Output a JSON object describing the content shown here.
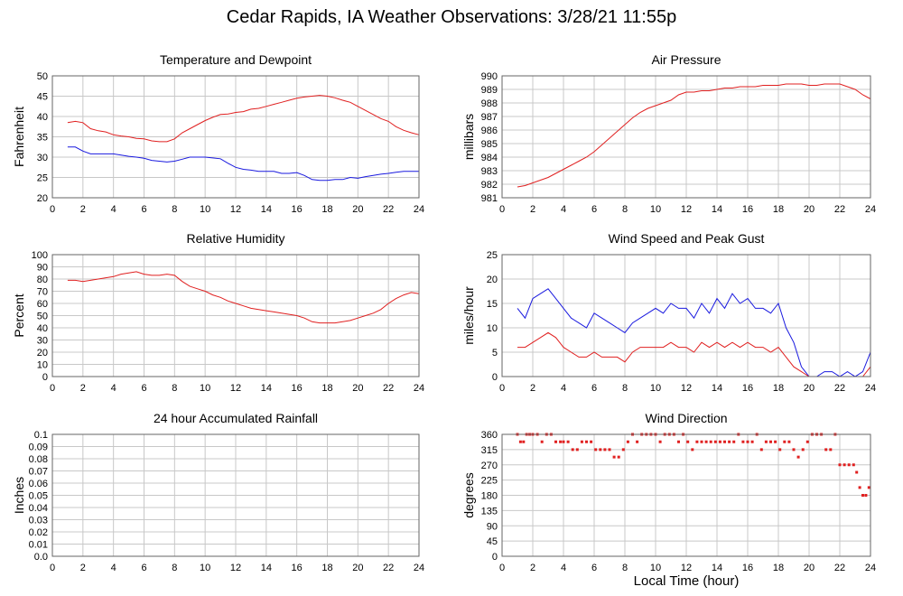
{
  "title": "Cedar Rapids, IA Weather Observations: 3/28/21 11:55p",
  "x_axis_label": "Local Time (hour)",
  "colors": {
    "red": "#e02020",
    "blue": "#1a1adf",
    "grid": "#c8c8c8",
    "frame": "#666666"
  },
  "chart_data": [
    {
      "id": "temp",
      "type": "line",
      "title": "Temperature and Dewpoint",
      "xlabel": "",
      "ylabel": "Fahrenheit",
      "xlim": [
        0,
        24
      ],
      "ylim": [
        20,
        50
      ],
      "xticks": [
        "2",
        "4",
        "6",
        "8",
        "10",
        "12",
        "14",
        "16",
        "18",
        "20",
        "22",
        "24"
      ],
      "yticks": [
        "20",
        "25",
        "30",
        "35",
        "40",
        "45",
        "50"
      ],
      "grid": true,
      "series": [
        {
          "color": "red",
          "x": [
            1,
            1.5,
            2,
            2.5,
            3,
            3.5,
            4,
            4.5,
            5,
            5.5,
            6,
            6.5,
            7,
            7.5,
            8,
            8.5,
            9,
            9.5,
            10,
            10.5,
            11,
            11.5,
            12,
            12.5,
            13,
            13.5,
            14,
            14.5,
            15,
            15.5,
            16,
            16.5,
            17,
            17.5,
            18,
            18.5,
            19,
            19.5,
            20,
            20.5,
            21,
            21.5,
            22,
            22.5,
            23,
            23.5,
            24
          ],
          "y": [
            38.5,
            38.8,
            38.5,
            37,
            36.5,
            36.2,
            35.5,
            35.2,
            35,
            34.6,
            34.5,
            34,
            33.8,
            33.8,
            34.5,
            36,
            37,
            38,
            39,
            39.8,
            40.5,
            40.6,
            41,
            41.2,
            41.8,
            42,
            42.5,
            43,
            43.5,
            44,
            44.5,
            44.8,
            45,
            45.2,
            45,
            44.6,
            44,
            43.5,
            42.5,
            41.5,
            40.5,
            39.5,
            38.8,
            37.5,
            36.6,
            36,
            35.5
          ]
        },
        {
          "color": "blue",
          "x": [
            1,
            1.5,
            2,
            2.5,
            3,
            3.5,
            4,
            4.5,
            5,
            5.5,
            6,
            6.5,
            7,
            7.5,
            8,
            8.5,
            9,
            9.5,
            10,
            10.5,
            11,
            11.5,
            12,
            12.5,
            13,
            13.5,
            14,
            14.5,
            15,
            15.5,
            16,
            16.5,
            17,
            17.5,
            18,
            18.5,
            19,
            19.5,
            20,
            20.5,
            21,
            21.5,
            22,
            22.5,
            23,
            23.5,
            24
          ],
          "y": [
            32.5,
            32.5,
            31.5,
            30.8,
            30.8,
            30.8,
            30.8,
            30.5,
            30.2,
            30,
            29.7,
            29.2,
            29,
            28.8,
            29,
            29.5,
            30,
            30,
            30,
            29.8,
            29.6,
            28.5,
            27.5,
            27,
            26.8,
            26.5,
            26.5,
            26.5,
            26,
            26,
            26.2,
            25.5,
            24.5,
            24.3,
            24.3,
            24.5,
            24.5,
            25,
            24.8,
            25.2,
            25.5,
            25.8,
            26,
            26.3,
            26.5,
            26.5,
            26.5
          ]
        }
      ]
    },
    {
      "id": "pressure",
      "type": "line",
      "title": "Air Pressure",
      "xlabel": "",
      "ylabel": "millibars",
      "xlim": [
        0,
        24
      ],
      "ylim": [
        981,
        990
      ],
      "xticks": [
        "2",
        "4",
        "6",
        "8",
        "10",
        "12",
        "14",
        "16",
        "18",
        "20",
        "22",
        "24"
      ],
      "yticks": [
        "981",
        "982",
        "983",
        "984",
        "985",
        "986",
        "987",
        "988",
        "989",
        "990"
      ],
      "grid": true,
      "series": [
        {
          "color": "red",
          "x": [
            1,
            1.5,
            2,
            2.5,
            3,
            3.5,
            4,
            4.5,
            5,
            5.5,
            6,
            6.5,
            7,
            7.5,
            8,
            8.5,
            9,
            9.5,
            10,
            10.5,
            11,
            11.5,
            12,
            12.5,
            13,
            13.5,
            14,
            14.5,
            15,
            15.5,
            16,
            16.5,
            17,
            17.5,
            18,
            18.5,
            19,
            19.5,
            20,
            20.5,
            21,
            21.5,
            22,
            22.5,
            23,
            23.5,
            24
          ],
          "y": [
            981.8,
            981.9,
            982.1,
            982.3,
            982.5,
            982.8,
            983.1,
            983.4,
            983.7,
            984,
            984.4,
            984.9,
            985.4,
            985.9,
            986.4,
            986.9,
            987.3,
            987.6,
            987.8,
            988,
            988.2,
            988.6,
            988.8,
            988.8,
            988.9,
            988.9,
            989,
            989.1,
            989.1,
            989.2,
            989.2,
            989.2,
            989.3,
            989.3,
            989.3,
            989.4,
            989.4,
            989.4,
            989.3,
            989.3,
            989.4,
            989.4,
            989.4,
            989.2,
            989,
            988.6,
            988.3
          ]
        }
      ]
    },
    {
      "id": "humidity",
      "type": "line",
      "title": "Relative Humidity",
      "xlabel": "",
      "ylabel": "Percent",
      "xlim": [
        0,
        24
      ],
      "ylim": [
        0,
        100
      ],
      "xticks": [
        "2",
        "4",
        "6",
        "8",
        "10",
        "12",
        "14",
        "16",
        "18",
        "20",
        "22",
        "24"
      ],
      "yticks": [
        "0",
        "10",
        "20",
        "30",
        "40",
        "50",
        "60",
        "70",
        "80",
        "90",
        "100"
      ],
      "grid": true,
      "series": [
        {
          "color": "red",
          "x": [
            1,
            1.5,
            2,
            2.5,
            3,
            3.5,
            4,
            4.5,
            5,
            5.5,
            6,
            6.5,
            7,
            7.5,
            8,
            8.5,
            9,
            9.5,
            10,
            10.5,
            11,
            11.5,
            12,
            12.5,
            13,
            13.5,
            14,
            14.5,
            15,
            15.5,
            16,
            16.5,
            17,
            17.5,
            18,
            18.5,
            19,
            19.5,
            20,
            20.5,
            21,
            21.5,
            22,
            22.5,
            23,
            23.5,
            24
          ],
          "y": [
            79,
            79,
            78,
            79,
            80,
            81,
            82,
            84,
            85,
            86,
            84,
            83,
            83,
            84,
            83,
            78,
            74,
            72,
            70,
            67,
            65,
            62,
            60,
            58,
            56,
            55,
            54,
            53,
            52,
            51,
            50,
            48,
            45,
            44,
            44,
            44,
            45,
            46,
            48,
            50,
            52,
            55,
            60,
            64,
            67,
            69,
            68
          ]
        }
      ]
    },
    {
      "id": "wind",
      "type": "line",
      "title": "Wind Speed and Peak Gust",
      "xlabel": "",
      "ylabel": "miles/hour",
      "xlim": [
        0,
        24
      ],
      "ylim": [
        0,
        25
      ],
      "xticks": [
        "2",
        "4",
        "6",
        "8",
        "10",
        "12",
        "14",
        "16",
        "18",
        "20",
        "22",
        "24"
      ],
      "yticks": [
        "0",
        "5",
        "10",
        "15",
        "20",
        "25"
      ],
      "grid": true,
      "series": [
        {
          "color": "blue",
          "x": [
            1,
            1.5,
            2,
            2.5,
            3,
            3.5,
            4,
            4.5,
            5,
            5.5,
            6,
            6.5,
            7,
            7.5,
            8,
            8.5,
            9,
            9.5,
            10,
            10.5,
            11,
            11.5,
            12,
            12.5,
            13,
            13.5,
            14,
            14.5,
            15,
            15.5,
            16,
            16.5,
            17,
            17.5,
            18,
            18.5,
            19,
            19.5,
            20,
            20.5,
            21,
            21.5,
            22,
            22.5,
            23,
            23.5,
            24
          ],
          "y": [
            14,
            12,
            16,
            17,
            18,
            16,
            14,
            12,
            11,
            10,
            13,
            12,
            11,
            10,
            9,
            11,
            12,
            13,
            14,
            13,
            15,
            14,
            14,
            12,
            15,
            13,
            16,
            14,
            17,
            15,
            16,
            14,
            14,
            13,
            15,
            10,
            7,
            2,
            0,
            0,
            1,
            1,
            0,
            1,
            0,
            1,
            5
          ]
        },
        {
          "color": "red",
          "x": [
            1,
            1.5,
            2,
            2.5,
            3,
            3.5,
            4,
            4.5,
            5,
            5.5,
            6,
            6.5,
            7,
            7.5,
            8,
            8.5,
            9,
            9.5,
            10,
            10.5,
            11,
            11.5,
            12,
            12.5,
            13,
            13.5,
            14,
            14.5,
            15,
            15.5,
            16,
            16.5,
            17,
            17.5,
            18,
            18.5,
            19,
            19.5,
            20,
            20.5,
            21,
            21.5,
            22,
            22.5,
            23,
            23.5,
            24
          ],
          "y": [
            6,
            6,
            7,
            8,
            9,
            8,
            6,
            5,
            4,
            4,
            5,
            4,
            4,
            4,
            3,
            5,
            6,
            6,
            6,
            6,
            7,
            6,
            6,
            5,
            7,
            6,
            7,
            6,
            7,
            6,
            7,
            6,
            6,
            5,
            6,
            4,
            2,
            1,
            0,
            0,
            0,
            0,
            0,
            0,
            0,
            0,
            2
          ]
        }
      ]
    },
    {
      "id": "rain",
      "type": "line",
      "title": "24 hour Accumulated Rainfall",
      "xlabel": "",
      "ylabel": "Inches",
      "xlim": [
        0,
        24
      ],
      "ylim": [
        0,
        0.1
      ],
      "xticks": [
        "2",
        "4",
        "6",
        "8",
        "10",
        "12",
        "14",
        "16",
        "18",
        "20",
        "22",
        "24"
      ],
      "yticks": [
        "0.0",
        "0.01",
        "0.02",
        "0.03",
        "0.04",
        "0.05",
        "0.06",
        "0.07",
        "0.08",
        "0.09",
        "0.1"
      ],
      "grid": true,
      "series": [
        {
          "color": "red",
          "x": [
            1,
            24
          ],
          "y": [
            0,
            0
          ]
        }
      ]
    },
    {
      "id": "winddir",
      "type": "scatter",
      "title": "Wind Direction",
      "xlabel": "Local Time (hour)",
      "ylabel": "degrees",
      "xlim": [
        0,
        24
      ],
      "ylim": [
        0,
        360
      ],
      "xticks": [
        "2",
        "4",
        "6",
        "8",
        "10",
        "12",
        "14",
        "16",
        "18",
        "20",
        "22",
        "24"
      ],
      "yticks": [
        "0",
        "45",
        "90",
        "135",
        "180",
        "225",
        "270",
        "315",
        "360"
      ],
      "grid": true,
      "series": [
        {
          "color": "red",
          "x": [
            1,
            1.2,
            1.4,
            1.6,
            1.8,
            2,
            2.3,
            2.6,
            2.9,
            3.2,
            3.5,
            3.8,
            4,
            4.3,
            4.6,
            4.9,
            5.2,
            5.5,
            5.8,
            6.1,
            6.4,
            6.7,
            7,
            7.3,
            7.6,
            7.9,
            8.2,
            8.5,
            8.8,
            9.1,
            9.4,
            9.7,
            10,
            10.3,
            10.6,
            10.9,
            11.2,
            11.5,
            11.8,
            12.1,
            12.4,
            12.7,
            13,
            13.3,
            13.6,
            13.9,
            14.2,
            14.5,
            14.8,
            15.1,
            15.4,
            15.7,
            16,
            16.3,
            16.6,
            16.9,
            17.2,
            17.5,
            17.8,
            18.1,
            18.4,
            18.7,
            19,
            19.3,
            19.6,
            19.9,
            20.2,
            20.5,
            20.8,
            21.1,
            21.4,
            21.7,
            22,
            22.3,
            22.6,
            22.9,
            23.1,
            23.3,
            23.5,
            23.7,
            23.9
          ],
          "y": [
            360,
            338,
            338,
            360,
            360,
            360,
            360,
            338,
            360,
            360,
            338,
            338,
            338,
            338,
            315,
            315,
            338,
            338,
            338,
            315,
            315,
            315,
            315,
            293,
            293,
            315,
            338,
            360,
            338,
            360,
            360,
            360,
            360,
            338,
            360,
            360,
            360,
            338,
            360,
            338,
            315,
            338,
            338,
            338,
            338,
            338,
            338,
            338,
            338,
            338,
            360,
            338,
            338,
            338,
            360,
            315,
            338,
            338,
            338,
            315,
            338,
            338,
            315,
            293,
            315,
            338,
            360,
            360,
            360,
            315,
            315,
            360,
            270,
            270,
            270,
            270,
            248,
            203,
            180,
            180,
            203
          ]
        }
      ]
    }
  ]
}
